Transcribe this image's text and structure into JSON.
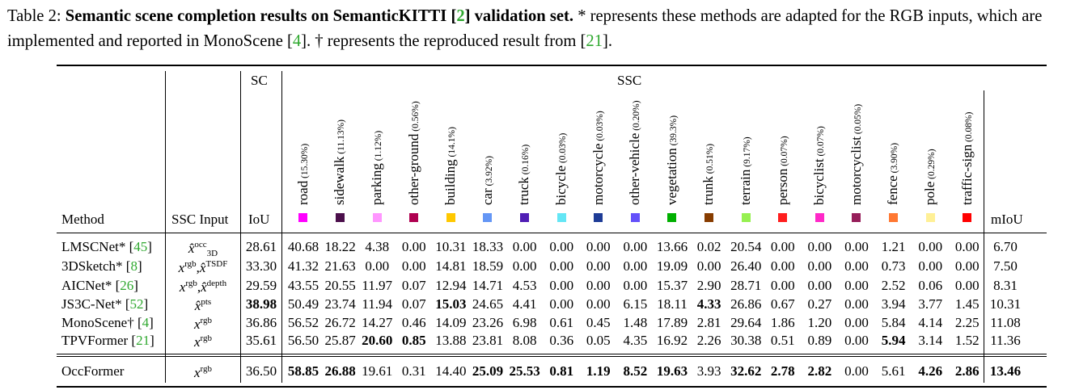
{
  "caption": {
    "label": "Table 2:",
    "title_bold_1": "Semantic scene completion results on SemanticKITTI [",
    "title_cite": "2",
    "title_bold_2": "] validation set.",
    "text_1": " * represents these methods are adapted for the RGB inputs, which are implemented and reported in MonoScene [",
    "cite_1": "4",
    "text_2": "]. † represents the reproduced result from [",
    "cite_2": "21",
    "text_3": "]."
  },
  "header": {
    "sc": "SC",
    "ssc": "SSC",
    "method": "Method",
    "ssc_input": "SSC Input",
    "iou": "IoU",
    "miou": "mIoU"
  },
  "classes": [
    {
      "name": "road",
      "pct": "(15.30%)",
      "color": "#ff00ff"
    },
    {
      "name": "sidewalk",
      "pct": "(11.13%)",
      "color": "#4b0f4b"
    },
    {
      "name": "parking",
      "pct": "(1.12%)",
      "color": "#ff96ff"
    },
    {
      "name": "other-ground",
      "pct": "(0.56%)",
      "color": "#af0050"
    },
    {
      "name": "building",
      "pct": "(14.1%)",
      "color": "#ffc800"
    },
    {
      "name": "car",
      "pct": "(3.92%)",
      "color": "#6496f5"
    },
    {
      "name": "truck",
      "pct": "(0.16%)",
      "color": "#501eb4"
    },
    {
      "name": "bicycle",
      "pct": "(0.03%)",
      "color": "#64e6f5"
    },
    {
      "name": "motorcycle",
      "pct": "(0.03%)",
      "color": "#1e3c96"
    },
    {
      "name": "other-vehicle",
      "pct": "(0.20%)",
      "color": "#6450fa"
    },
    {
      "name": "vegetation",
      "pct": "(39.3%)",
      "color": "#00af00"
    },
    {
      "name": "trunk",
      "pct": "(0.51%)",
      "color": "#873c00"
    },
    {
      "name": "terrain",
      "pct": "(9.17%)",
      "color": "#96f050"
    },
    {
      "name": "person",
      "pct": "(0.07%)",
      "color": "#ff1e1e"
    },
    {
      "name": "bicyclist",
      "pct": "(0.07%)",
      "color": "#ff28c8"
    },
    {
      "name": "motorcyclist",
      "pct": "(0.05%)",
      "color": "#961e5a"
    },
    {
      "name": "fence",
      "pct": "(3.90%)",
      "color": "#ff7832"
    },
    {
      "name": "pole",
      "pct": "(0.29%)",
      "color": "#fff096"
    },
    {
      "name": "traffic-sign",
      "pct": "(0.08%)",
      "color": "#ff0000"
    }
  ],
  "rows": [
    {
      "method": "LMSCNet*",
      "cite": "45",
      "input": {
        "base": "x̂",
        "sup": "occ",
        "sub": "3D"
      },
      "iou": "28.61",
      "values": [
        "40.68",
        "18.22",
        "4.38",
        "0.00",
        "10.31",
        "18.33",
        "0.00",
        "0.00",
        "0.00",
        "0.00",
        "13.66",
        "0.02",
        "20.54",
        "0.00",
        "0.00",
        "0.00",
        "1.21",
        "0.00",
        "0.00"
      ],
      "miou": "6.70",
      "bold": []
    },
    {
      "method": "3DSketch*",
      "cite": "8",
      "input": {
        "base": "x",
        "sup": "rgb",
        "base2": "x̂",
        "sup2": "TSDF"
      },
      "iou": "33.30",
      "values": [
        "41.32",
        "21.63",
        "0.00",
        "0.00",
        "14.81",
        "18.59",
        "0.00",
        "0.00",
        "0.00",
        "0.00",
        "19.09",
        "0.00",
        "26.40",
        "0.00",
        "0.00",
        "0.00",
        "0.73",
        "0.00",
        "0.00"
      ],
      "miou": "7.50",
      "bold": []
    },
    {
      "method": "AICNet*",
      "cite": "26",
      "input": {
        "base": "x",
        "sup": "rgb",
        "base2": "x̂",
        "sup2": "depth"
      },
      "iou": "29.59",
      "values": [
        "43.55",
        "20.55",
        "11.97",
        "0.07",
        "12.94",
        "14.71",
        "4.53",
        "0.00",
        "0.00",
        "0.00",
        "15.37",
        "2.90",
        "28.71",
        "0.00",
        "0.00",
        "0.00",
        "2.52",
        "0.06",
        "0.00"
      ],
      "miou": "8.31",
      "bold": []
    },
    {
      "method": "JS3C-Net*",
      "cite": "52",
      "input": {
        "base": "x̂",
        "sup": "pts"
      },
      "iou": "38.98",
      "iou_bold": true,
      "values": [
        "50.49",
        "23.74",
        "11.94",
        "0.07",
        "15.03",
        "24.65",
        "4.41",
        "0.00",
        "0.00",
        "6.15",
        "18.11",
        "4.33",
        "26.86",
        "0.67",
        "0.27",
        "0.00",
        "3.94",
        "3.77",
        "1.45"
      ],
      "miou": "10.31",
      "bold": [
        4,
        11
      ]
    },
    {
      "method": "MonoScene†",
      "cite": "4",
      "input": {
        "base": "x",
        "sup": "rgb"
      },
      "iou": "36.86",
      "values": [
        "56.52",
        "26.72",
        "14.27",
        "0.46",
        "14.09",
        "23.26",
        "6.98",
        "0.61",
        "0.45",
        "1.48",
        "17.89",
        "2.81",
        "29.64",
        "1.86",
        "1.20",
        "0.00",
        "5.84",
        "4.14",
        "2.25"
      ],
      "miou": "11.08",
      "bold": []
    },
    {
      "method": "TPVFormer",
      "cite": "21",
      "input": {
        "base": "x",
        "sup": "rgb"
      },
      "iou": "35.61",
      "values": [
        "56.50",
        "25.87",
        "20.60",
        "0.85",
        "13.88",
        "23.81",
        "8.08",
        "0.36",
        "0.05",
        "4.35",
        "16.92",
        "2.26",
        "30.38",
        "0.51",
        "0.89",
        "0.00",
        "5.94",
        "3.14",
        "1.52"
      ],
      "miou": "11.36",
      "bold": [
        2,
        3,
        16
      ]
    },
    {
      "method": "OccFormer",
      "cite": "",
      "input": {
        "base": "x",
        "sup": "rgb"
      },
      "iou": "36.50",
      "values": [
        "58.85",
        "26.88",
        "19.61",
        "0.31",
        "14.40",
        "25.09",
        "25.53",
        "0.81",
        "1.19",
        "8.52",
        "19.63",
        "3.93",
        "32.62",
        "2.78",
        "2.82",
        "0.00",
        "5.61",
        "4.26",
        "2.86"
      ],
      "miou": "13.46",
      "miou_bold": true,
      "bold": [
        0,
        1,
        5,
        6,
        7,
        8,
        9,
        10,
        12,
        13,
        14,
        17,
        18
      ]
    }
  ]
}
